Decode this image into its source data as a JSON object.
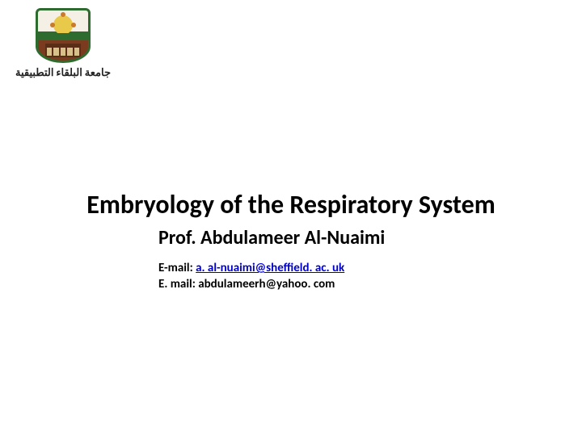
{
  "logo": {
    "arabic_line1": "جامعة البلقاء التطبيقية",
    "crest_border": "#2e6b2e",
    "crest_bg_top": "#f4f0e6",
    "crest_bg_mid": "#2e6b2e",
    "crest_bg_bot": "#7a3b1e",
    "sun_color": "#e8c94a"
  },
  "title": "Embryology of the Respiratory System",
  "author": "Prof. Abdulameer Al-Nuaimi",
  "contact": {
    "email1_label": "E-mail: ",
    "email1_link": "a. al-nuaimi@sheffield. ac. uk",
    "email2_full": "E. mail: abdulameerh@yahoo. com"
  },
  "colors": {
    "link": "#0000cc",
    "text": "#000000",
    "background": "#ffffff"
  }
}
